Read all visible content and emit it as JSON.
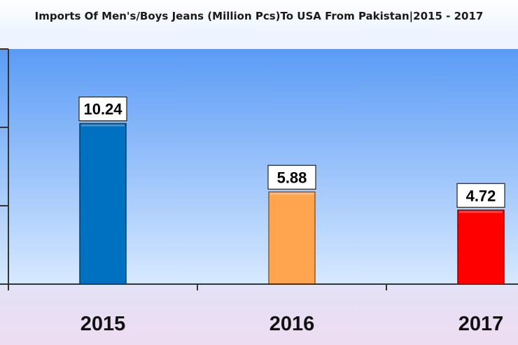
{
  "chart_data": {
    "type": "bar",
    "title": "Imports Of Men's/Boys Jeans (Million Pcs)To USA From Pakistan|2015 - 2017",
    "categories": [
      "2015",
      "2016",
      "2017"
    ],
    "values": [
      10.24,
      5.88,
      4.72
    ],
    "value_labels": [
      "10.24",
      "5.88",
      "4.72"
    ],
    "bar_colors": [
      "#0070c0",
      "#ffa550",
      "#ff0000"
    ],
    "xlabel": "",
    "ylabel": "",
    "ylim": [
      0,
      15
    ],
    "grid": false,
    "legend": "none",
    "plot_background": [
      "#5b9bf5",
      "#d7e9ff"
    ]
  }
}
